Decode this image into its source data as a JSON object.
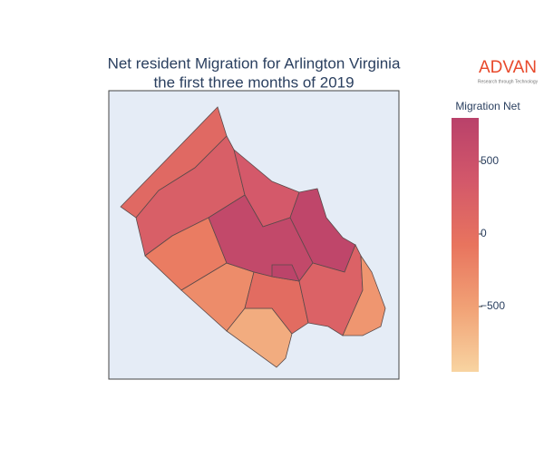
{
  "chart_data": {
    "type": "choropleth",
    "title": "Net resident Migration for Arlington Virginia",
    "subtitle": "the first three months of 2019",
    "logo": "ADVAN",
    "logo_tagline": "Research through Technology",
    "colorbar_title": "Migration Net",
    "zlim": [
      -950,
      800
    ],
    "zticks": [
      {
        "value": -500,
        "label": "−500"
      },
      0,
      500
    ],
    "colorscale": [
      "#f8d4a1",
      "#f1a276",
      "#e8745e",
      "#d3586a",
      "#b9416a"
    ],
    "values": [
      100,
      250,
      -150,
      350,
      700,
      -300,
      650,
      -600,
      50,
      200,
      -400,
      750
    ]
  }
}
